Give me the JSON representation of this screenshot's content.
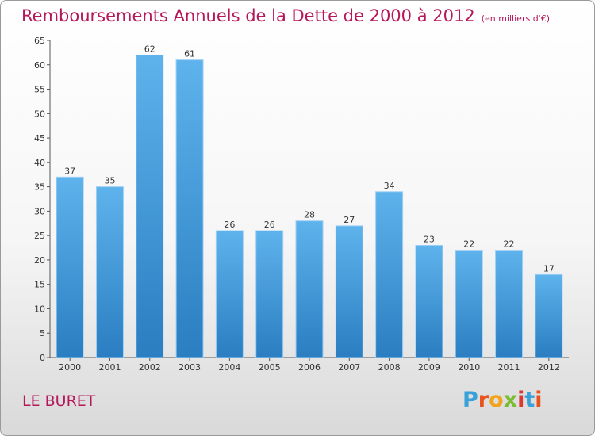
{
  "chart_data": {
    "type": "bar",
    "title": "Remboursements Annuels de la Dette de 2000 à 2012",
    "unit_label": "(en milliers d'€)",
    "categories": [
      "2000",
      "2001",
      "2002",
      "2003",
      "2004",
      "2005",
      "2006",
      "2007",
      "2008",
      "2009",
      "2010",
      "2011",
      "2012"
    ],
    "values": [
      37,
      35,
      62,
      61,
      26,
      26,
      28,
      27,
      34,
      23,
      22,
      22,
      17
    ],
    "ylim": [
      0,
      65
    ],
    "yticks": [
      0,
      5,
      10,
      15,
      20,
      25,
      30,
      35,
      40,
      45,
      50,
      55,
      60,
      65
    ],
    "grid": false,
    "legend": "none",
    "bar_color": "#3f97d9"
  },
  "footer": {
    "commune": "LE BURET",
    "logo_letters": [
      {
        "ch": "P",
        "color": "#3aa0d8"
      },
      {
        "ch": "r",
        "color": "#e8531d"
      },
      {
        "ch": "o",
        "color": "#f2a31b"
      },
      {
        "ch": "x",
        "color": "#7bbd32"
      },
      {
        "ch": "i",
        "color": "#d9392f"
      },
      {
        "ch": "t",
        "color": "#3aa0d8"
      },
      {
        "ch": "i",
        "color": "#e8531d"
      }
    ]
  }
}
